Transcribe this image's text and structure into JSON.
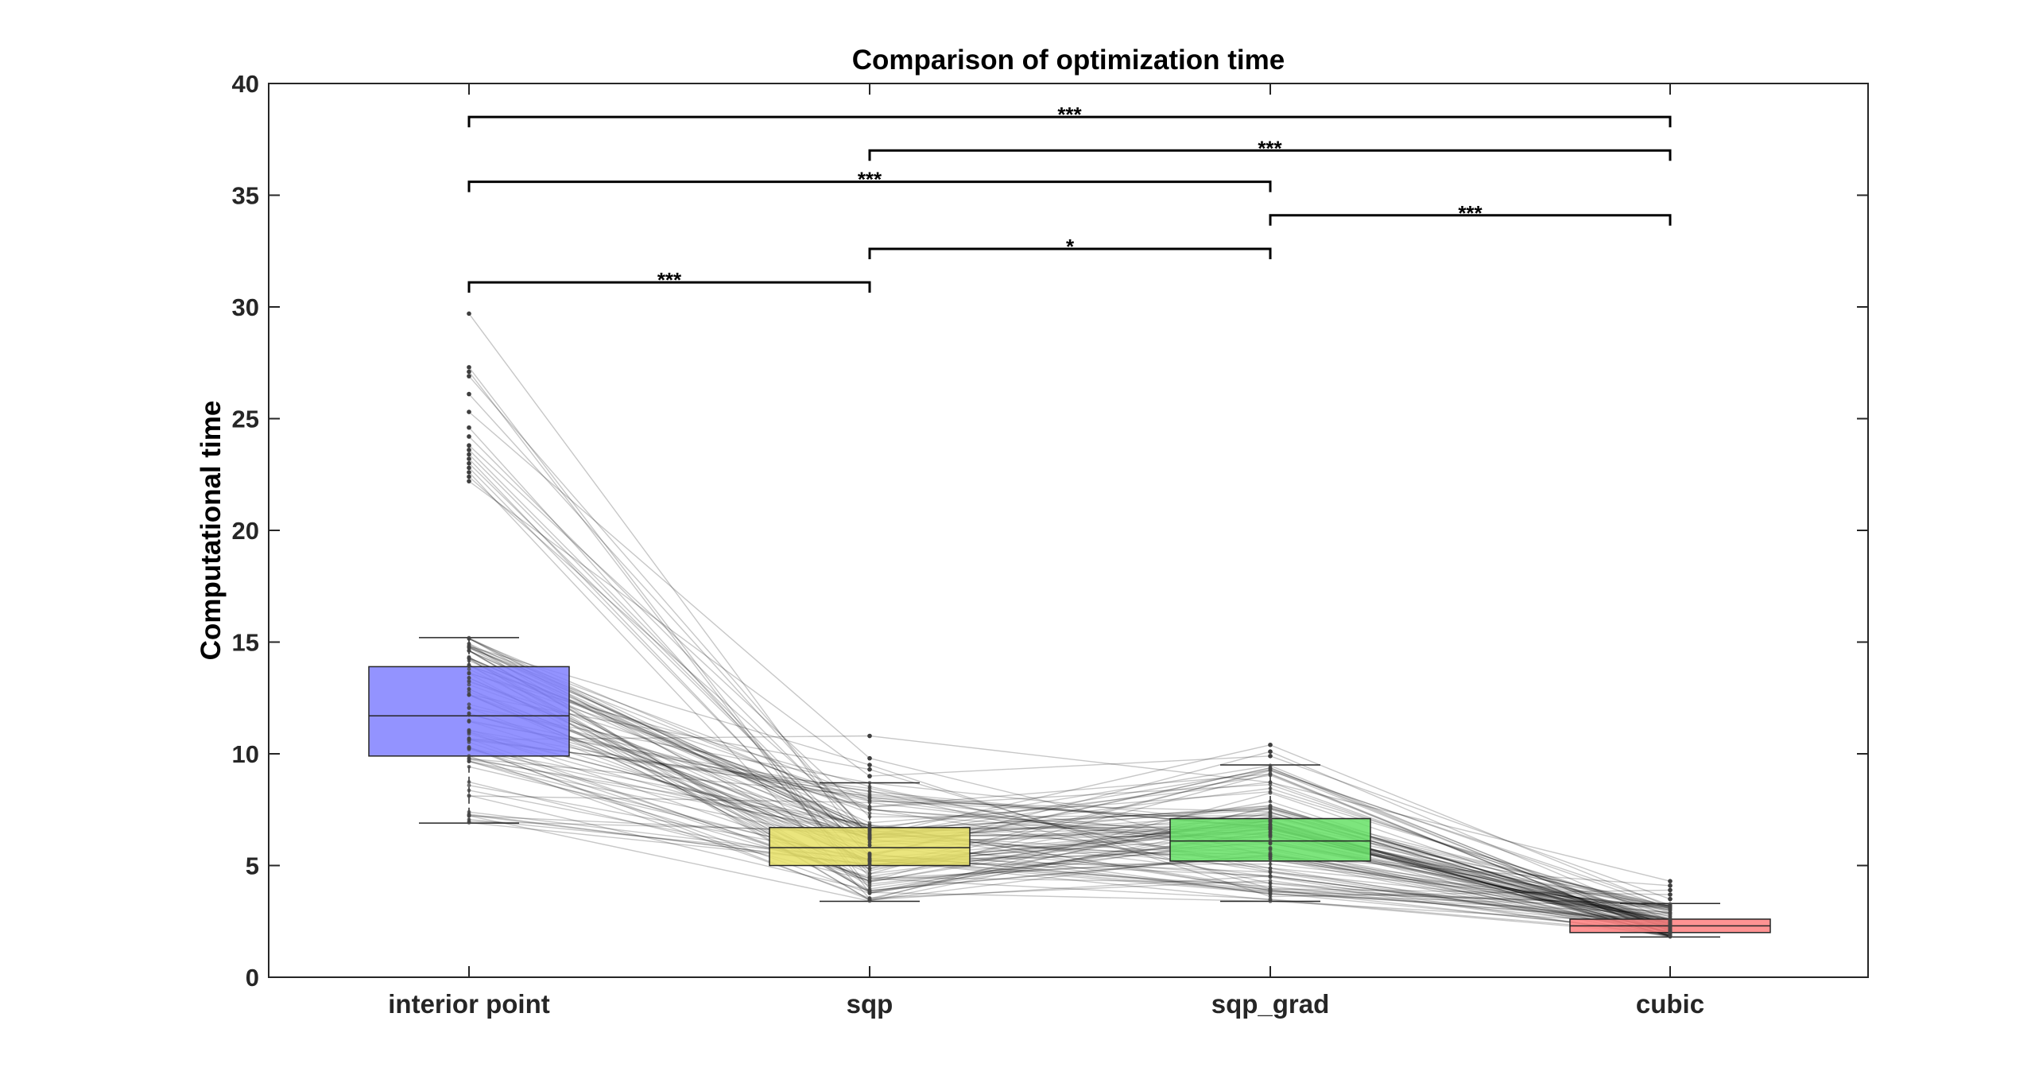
{
  "chart_data": {
    "type": "box",
    "title": "Comparison of optimization time",
    "xlabel": "",
    "ylabel": "Computational time",
    "ylim": [
      0,
      40
    ],
    "yticks": [
      0,
      5,
      10,
      15,
      20,
      25,
      30,
      35,
      40
    ],
    "categories": [
      "interior point",
      "sqp",
      "sqp_grad",
      "cubic"
    ],
    "boxes": [
      {
        "category": "interior point",
        "color": "#8080ff",
        "q1": 9.9,
        "median": 11.7,
        "q3": 13.9,
        "whisker_low": 6.9,
        "whisker_high": 15.2,
        "outliers": [
          22.2,
          22.4,
          22.6,
          22.8,
          23.0,
          23.2,
          23.4,
          23.6,
          23.8,
          24.2,
          24.6,
          25.3,
          26.1,
          26.9,
          27.1,
          27.3,
          29.7
        ]
      },
      {
        "category": "sqp",
        "color": "#e6e066",
        "q1": 5.0,
        "median": 5.8,
        "q3": 6.7,
        "whisker_low": 3.4,
        "whisker_high": 8.7,
        "outliers": [
          9.0,
          9.3,
          9.5,
          9.8,
          10.8
        ]
      },
      {
        "category": "sqp_grad",
        "color": "#66e066",
        "q1": 5.2,
        "median": 6.1,
        "q3": 7.1,
        "whisker_low": 3.4,
        "whisker_high": 9.5,
        "outliers": [
          9.9,
          10.1,
          10.4
        ]
      },
      {
        "category": "cubic",
        "color": "#ff8080",
        "q1": 2.0,
        "median": 2.3,
        "q3": 2.6,
        "whisker_low": 1.8,
        "whisker_high": 3.3,
        "outliers": [
          3.5,
          3.7,
          3.9,
          4.1,
          4.3
        ]
      }
    ],
    "significance": [
      {
        "from": "interior point",
        "to": "sqp",
        "y": 31.1,
        "label": "***"
      },
      {
        "from": "sqp",
        "to": "sqp_grad",
        "y": 32.6,
        "label": "*"
      },
      {
        "from": "sqp_grad",
        "to": "cubic",
        "y": 34.1,
        "label": "***"
      },
      {
        "from": "interior point",
        "to": "sqp_grad",
        "y": 35.6,
        "label": "***"
      },
      {
        "from": "sqp",
        "to": "cubic",
        "y": 37.0,
        "label": "***"
      },
      {
        "from": "interior point",
        "to": "cubic",
        "y": 38.5,
        "label": "***"
      }
    ],
    "paired_lines": "grey lines connect each subject's values across the four methods",
    "grid": false,
    "legend": "none"
  }
}
